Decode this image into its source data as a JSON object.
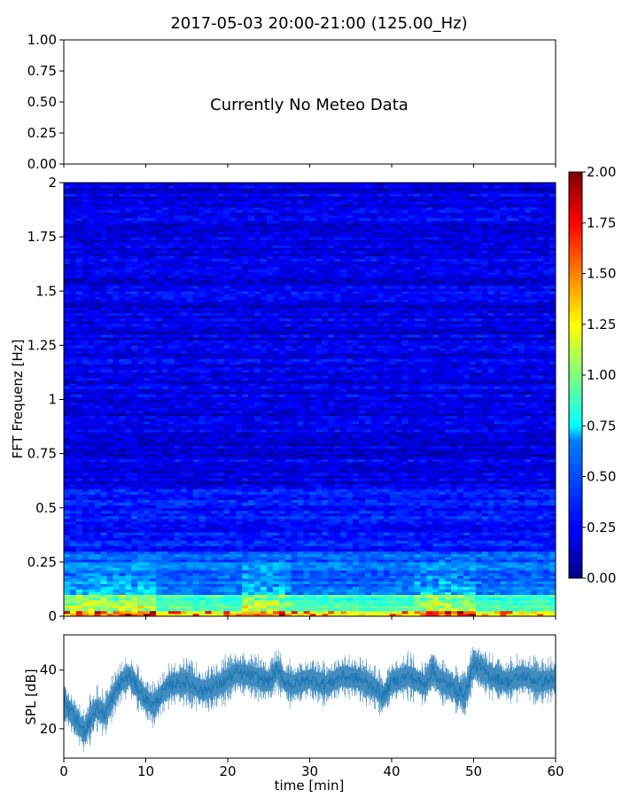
{
  "title": "2017-05-03 20:00-21:00 (125.00_Hz)",
  "chart_data": [
    {
      "type": "line",
      "panel": "meteo",
      "title": "",
      "annotation": "Currently No Meteo Data",
      "ylim": [
        0,
        1
      ],
      "y_ticks": [
        "0.00",
        "0.25",
        "0.50",
        "0.75",
        "1.00"
      ],
      "x": [],
      "values": []
    },
    {
      "type": "heatmap",
      "panel": "spectrogram",
      "ylabel": "FFT Frequenz [Hz]",
      "xlim": [
        0,
        60
      ],
      "ylim": [
        0,
        2
      ],
      "y_ticks": [
        "0",
        "0.25",
        "0.5",
        "0.75",
        "1",
        "1.25",
        "1.5",
        "1.75",
        "2"
      ],
      "colormap": "jet",
      "colorbar": {
        "range": [
          0,
          2
        ],
        "ticks": [
          "0.00",
          "0.25",
          "0.50",
          "0.75",
          "1.00",
          "1.25",
          "1.50",
          "1.75",
          "2.00"
        ]
      },
      "bands": [
        {
          "f0": 0.0,
          "f1": 0.03,
          "level": 1.2
        },
        {
          "f0": 0.03,
          "f1": 0.1,
          "level": 0.85
        },
        {
          "f0": 0.1,
          "f1": 0.3,
          "level": 0.45
        },
        {
          "f0": 0.3,
          "f1": 0.6,
          "level": 0.28
        },
        {
          "f0": 0.6,
          "f1": 2.0,
          "level": 0.2
        }
      ],
      "hot_time_ranges": [
        [
          0,
          11
        ],
        [
          22,
          28
        ],
        [
          43,
          50
        ]
      ]
    },
    {
      "type": "line",
      "panel": "spl",
      "xlabel": "time [min]",
      "ylabel": "SPL [dB]",
      "xlim": [
        0,
        60
      ],
      "ylim": [
        10,
        52
      ],
      "x_ticks": [
        "0",
        "10",
        "20",
        "30",
        "40",
        "50",
        "60"
      ],
      "y_ticks": [
        "20",
        "40"
      ],
      "color": "#1f77b4",
      "series": [
        {
          "x": [
            0,
            1,
            2,
            2.5,
            3,
            4,
            5,
            6,
            7,
            8,
            9,
            10,
            11,
            12,
            13,
            15,
            17,
            19,
            21,
            23,
            25,
            26,
            27,
            28,
            30,
            32,
            34,
            36,
            38,
            39,
            40,
            42,
            44,
            45,
            46,
            47,
            48,
            49,
            50,
            52,
            54,
            56,
            58,
            60
          ],
          "values": [
            29,
            25,
            21,
            19,
            22,
            27,
            25,
            31,
            36,
            38,
            34,
            30,
            28,
            32,
            35,
            36,
            33,
            35,
            39,
            38,
            36,
            40,
            36,
            35,
            37,
            35,
            38,
            37,
            34,
            31,
            36,
            38,
            35,
            40,
            36,
            35,
            33,
            32,
            42,
            38,
            36,
            38,
            36,
            37
          ]
        }
      ]
    }
  ],
  "colors": {
    "line": "#1f77b4",
    "axes": "#000000",
    "background": "#ffffff"
  }
}
